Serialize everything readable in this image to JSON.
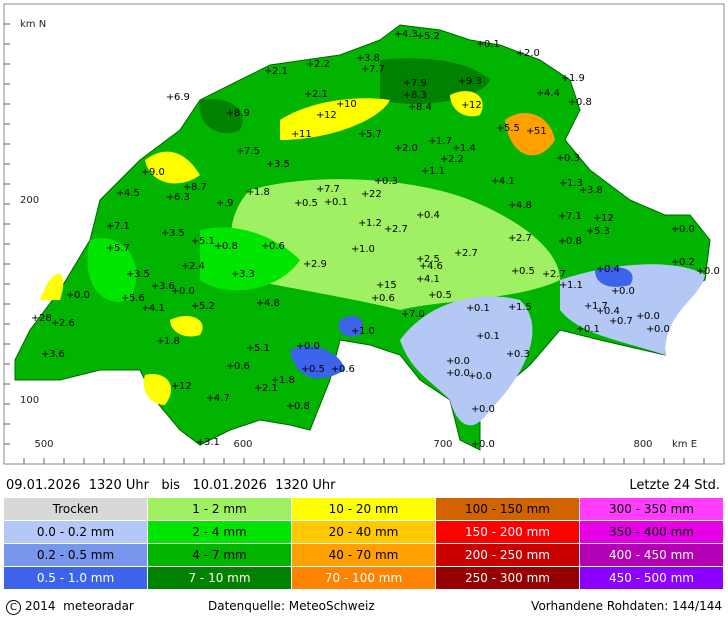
{
  "header": {
    "date_range": "09.01.2026  1320 Uhr   bis   10.01.2026  1320 Uhr",
    "period": "Letzte 24 Std."
  },
  "map": {
    "axis_labels": [
      "km N",
      "200",
      "100",
      "500",
      "600",
      "700",
      "800",
      "km E"
    ],
    "stations": [
      "4.3",
      "5.2",
      "0.1",
      "2.0",
      "3.8",
      "7.7",
      "2.2",
      "2.1",
      "1.9",
      "7.9",
      "9.3",
      "4.4",
      "8.3",
      "2.1",
      "6.9",
      "10",
      "12",
      "0.8",
      "8.4",
      "8.9",
      "12",
      "5.5",
      "51",
      "11",
      "5.7",
      "1.7",
      "2.0",
      "1.4",
      "7.5",
      "0.3",
      "2.2",
      "3.5",
      "9.0",
      "1.1",
      "0.3",
      "4.1",
      "1.3",
      "8.7",
      "7.7",
      "3.8",
      "4.5",
      "1.8",
      "6.3",
      "22",
      "0.5",
      "0.1",
      ".9",
      "4.8",
      "0.4",
      "7.1",
      "12",
      "7.1",
      "5.3",
      "1.2",
      "2.7",
      "0.0",
      "3.5",
      "2.7",
      "0.8",
      "5.1",
      "0.8",
      "0.6",
      "5.7",
      "1.0",
      "2.7",
      "2.5",
      "0.2",
      "2.9",
      "2.4",
      "4.6",
      "0.4",
      "0.0",
      "0.5",
      "2.7",
      "3.3",
      "3.5",
      "4.1",
      "1.1",
      "3.6",
      "15",
      "0.0",
      "0.0",
      "0.0",
      "5.6",
      "0.6",
      "4.8",
      "0.5",
      "5.2",
      "4.1",
      "0.1",
      "1.5",
      "1.7",
      "0.4",
      "7.0",
      "0.0",
      "0.7",
      "28",
      "2.6",
      "0.0",
      "0.1",
      "1.0",
      "0.1",
      "1.8",
      "0.0",
      "5.1",
      "0.3",
      "3.6",
      "0.0",
      "0.6",
      "0.5",
      "0.6",
      "0.0",
      "0.0",
      "1.8",
      "12",
      "2.1",
      "4.7",
      "0.8",
      "0.0",
      "3.1",
      "0.0"
    ]
  },
  "legend": [
    {
      "label": "Trocken",
      "color": "#d8d8d8"
    },
    {
      "label": "0.0 - 0.2 mm",
      "color": "#b4c8f5"
    },
    {
      "label": "0.2 - 0.5 mm",
      "color": "#7896eb"
    },
    {
      "label": "0.5 - 1.0 mm",
      "color": "#3c64eb"
    },
    {
      "label": "1 - 2 mm",
      "color": "#a0f064"
    },
    {
      "label": "2 - 4 mm",
      "color": "#00e600"
    },
    {
      "label": "4 - 7 mm",
      "color": "#00b400"
    },
    {
      "label": "7 - 10 mm",
      "color": "#008200"
    },
    {
      "label": "10 - 20 mm",
      "color": "#ffff00"
    },
    {
      "label": "20 - 40 mm",
      "color": "#ffc800"
    },
    {
      "label": "40 - 70 mm",
      "color": "#ffa000"
    },
    {
      "label": "70 - 100 mm",
      "color": "#ff8200"
    },
    {
      "label": "100 - 150 mm",
      "color": "#d26400"
    },
    {
      "label": "150 - 200 mm",
      "color": "#ff0000"
    },
    {
      "label": "200 - 250 mm",
      "color": "#c80000"
    },
    {
      "label": "250 - 300 mm",
      "color": "#960000"
    },
    {
      "label": "300 - 350 mm",
      "color": "#ff3cff"
    },
    {
      "label": "350 - 400 mm",
      "color": "#e600e6"
    },
    {
      "label": "400 - 450 mm",
      "color": "#b400b4"
    },
    {
      "label": "450 - 500 mm",
      "color": "#8c00ff"
    }
  ],
  "footer": {
    "copyright": "2014  meteoradar",
    "source": "Datenquelle: MeteoSchweiz",
    "raw_data": "Vorhandene Rohdaten: 144/144"
  }
}
